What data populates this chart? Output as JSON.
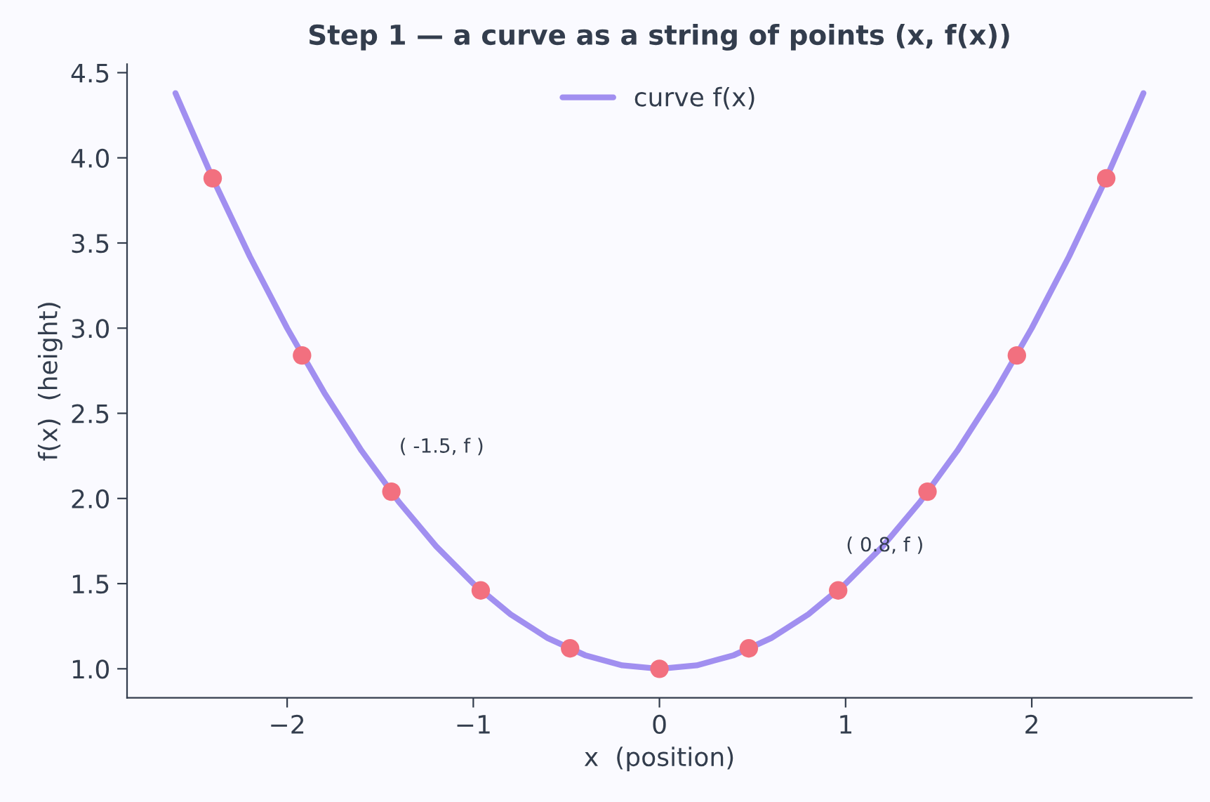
{
  "chart_data": {
    "type": "line",
    "title": "Step 1 — a curve as a string of points (x, f(x))",
    "xlabel": "x  (position)",
    "ylabel": "f(x)  (height)",
    "series": [
      {
        "name": "curve f(x)",
        "color": "#a18ff0",
        "marker": "none",
        "x": [
          -2.6,
          -2.4,
          -2.2,
          -2.0,
          -1.8,
          -1.6,
          -1.4,
          -1.2,
          -1.0,
          -0.8,
          -0.6,
          -0.4,
          -0.2,
          0.0,
          0.2,
          0.4,
          0.6,
          0.8,
          1.0,
          1.2,
          1.4,
          1.6,
          1.8,
          2.0,
          2.2,
          2.4,
          2.6
        ],
        "values": [
          4.38,
          3.88,
          3.42,
          3.0,
          2.62,
          2.28,
          1.98,
          1.72,
          1.5,
          1.32,
          1.18,
          1.08,
          1.02,
          1.0,
          1.02,
          1.08,
          1.18,
          1.32,
          1.5,
          1.72,
          1.98,
          2.28,
          2.62,
          3.0,
          3.42,
          3.88,
          4.38
        ]
      },
      {
        "type": "scatter",
        "color": "#f2707f",
        "marker": "circle",
        "x": [
          -2.4,
          -1.92,
          -1.44,
          -0.96,
          -0.48,
          0.0,
          0.48,
          0.96,
          1.44,
          1.92,
          2.4
        ],
        "values": [
          3.88,
          2.84,
          2.04,
          1.46,
          1.12,
          1.0,
          1.12,
          1.46,
          2.04,
          2.84,
          3.88
        ]
      }
    ],
    "annotations": [
      {
        "text": "( -1.5, f )",
        "x": -1.44,
        "y": 2.04
      },
      {
        "text": "( 0.8, f )",
        "x": 0.96,
        "y": 1.46
      }
    ],
    "xlim": [
      -2.86,
      2.86
    ],
    "ylim": [
      0.83,
      4.55
    ],
    "xticks": [
      {
        "value": -2,
        "label": "−2"
      },
      {
        "value": -1,
        "label": "−1"
      },
      0,
      1,
      2
    ],
    "yticks": [
      {
        "value": 1.0,
        "label": "1.0"
      },
      {
        "value": 1.5,
        "label": "1.5"
      },
      {
        "value": 2.0,
        "label": "2.0"
      },
      {
        "value": 2.5,
        "label": "2.5"
      },
      {
        "value": 3.0,
        "label": "3.0"
      },
      {
        "value": 3.5,
        "label": "3.5"
      },
      {
        "value": 4.0,
        "label": "4.0"
      },
      {
        "value": 4.5,
        "label": "4.5"
      }
    ],
    "grid": false,
    "legend": "top"
  }
}
